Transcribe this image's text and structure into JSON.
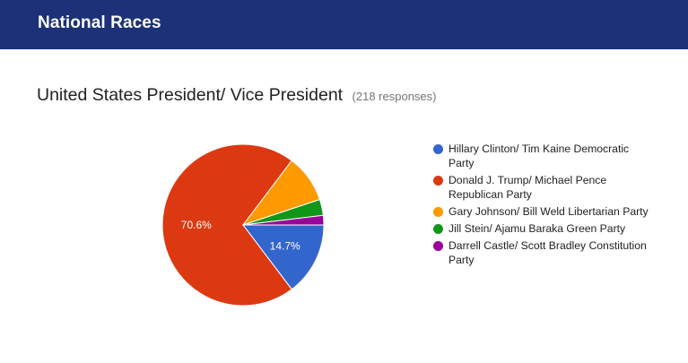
{
  "header": {
    "title": "National Races",
    "color": "#1c3177"
  },
  "question": {
    "title": "United States President/ Vice President",
    "responses": "(218 responses)"
  },
  "chart_data": {
    "type": "pie",
    "title": "United States President/ Vice President",
    "categories": [
      "Hillary Clinton/ Tim Kaine Democratic Party",
      "Donald J. Trump/ Michael Pence Republican Party",
      "Gary Johnson/ Bill Weld Libertarian Party",
      "Jill Stein/ Ajamu Baraka Green Party",
      "Darrell Castle/ Scott Bradley Constitution Party"
    ],
    "values": [
      14.7,
      70.6,
      9.6,
      3.2,
      1.9
    ],
    "colors": [
      "#3366cc",
      "#dc3912",
      "#ff9900",
      "#109618",
      "#990099"
    ],
    "data_labels": [
      "14.7%",
      "70.6%",
      "",
      "",
      ""
    ],
    "legend": "right"
  }
}
